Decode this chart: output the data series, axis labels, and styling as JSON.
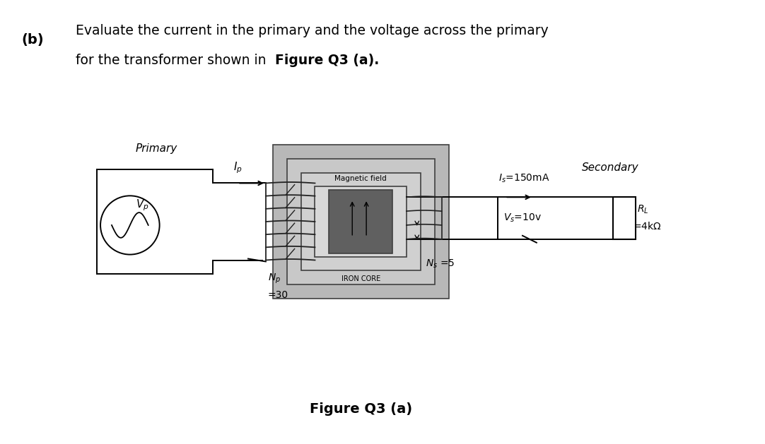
{
  "bg_color": "#ffffff",
  "fig_width": 10.82,
  "fig_height": 6.29,
  "question_line1": "Evaluate the current in the primary and the voltage across the primary",
  "question_line2_normal": "for the transformer shown in ",
  "question_line2_bold": "Figure Q3 (a).",
  "question_fontsize": 13.5,
  "figure_caption": "Figure Q3 (a)",
  "caption_fontsize": 14
}
